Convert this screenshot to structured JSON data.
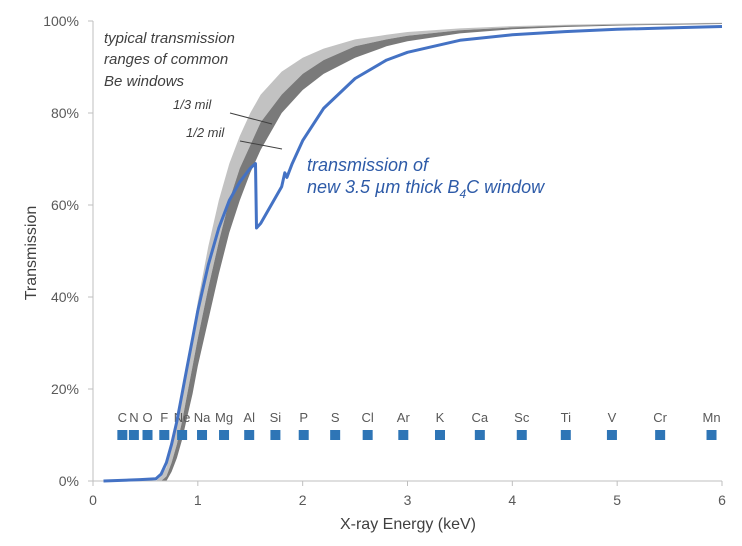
{
  "chart_data": {
    "type": "line",
    "xlabel": "X-ray Energy (keV)",
    "ylabel": "Transmission",
    "xlim": [
      0,
      6
    ],
    "ylim": [
      0,
      100
    ],
    "xticks": [
      "0",
      "1",
      "2",
      "3",
      "4",
      "5",
      "6"
    ],
    "yticks": [
      "0%",
      "20%",
      "40%",
      "60%",
      "80%",
      "100%"
    ],
    "colors": {
      "be_light": "#c2c2c2",
      "be_dark": "#7a7a7a",
      "b4c": "#4472c4",
      "marker": "#2e75b6",
      "axis": "#bfbfbf"
    },
    "annotations": {
      "be_title": [
        "typical transmission",
        "ranges of  common",
        "Be windows"
      ],
      "one_third_mil": "1/3 mil",
      "one_half_mil": "1/2 mil",
      "b4c_line1": "transmission of",
      "b4c_line2_pre": "new 3.5 µm thick B",
      "b4c_line2_sub": "4",
      "b4c_line2_post": "C window"
    },
    "series": [
      {
        "name": "Be 1/3 mil (upper bound)",
        "x": [
          0.6,
          0.65,
          0.7,
          0.75,
          0.8,
          0.85,
          0.9,
          0.95,
          1.0,
          1.1,
          1.2,
          1.3,
          1.4,
          1.5,
          1.6,
          1.8,
          2.0,
          2.2,
          2.5,
          2.8,
          3.0,
          3.5,
          4.0,
          4.5,
          5.0,
          5.5,
          6.0
        ],
        "values": [
          0,
          1,
          3,
          7,
          12,
          18,
          25,
          32,
          39,
          51,
          61,
          69,
          75,
          80,
          84,
          89,
          92,
          94,
          96,
          97,
          97.6,
          98.4,
          98.9,
          99.2,
          99.4,
          99.5,
          99.6
        ]
      },
      {
        "name": "Be 1/3 mil (lower bound) / 1/2 mil (upper bound)",
        "x": [
          0.65,
          0.7,
          0.75,
          0.8,
          0.85,
          0.9,
          0.95,
          1.0,
          1.1,
          1.2,
          1.3,
          1.4,
          1.5,
          1.6,
          1.8,
          2.0,
          2.2,
          2.5,
          2.8,
          3.0,
          3.5,
          4.0,
          4.5,
          5.0,
          5.5,
          6.0
        ],
        "values": [
          0,
          1,
          4,
          8,
          13,
          19,
          25,
          31,
          42,
          52,
          61,
          68,
          73,
          78,
          84,
          88.5,
          91.5,
          94.5,
          96,
          96.8,
          98,
          98.6,
          99,
          99.2,
          99.35,
          99.5
        ]
      },
      {
        "name": "Be 1/2 mil (lower bound)",
        "x": [
          0.7,
          0.75,
          0.8,
          0.85,
          0.9,
          0.95,
          1.0,
          1.1,
          1.2,
          1.3,
          1.4,
          1.5,
          1.6,
          1.8,
          2.0,
          2.2,
          2.5,
          2.8,
          3.0,
          3.5,
          4.0,
          4.5,
          5.0,
          5.5,
          6.0
        ],
        "values": [
          0,
          2,
          5,
          9,
          14,
          19,
          25,
          35,
          45,
          54,
          61,
          67,
          72,
          80,
          85,
          88.5,
          92,
          94.5,
          95.6,
          97.3,
          98.2,
          98.7,
          99,
          99.2,
          99.35
        ]
      },
      {
        "name": "3.5 µm B4C window",
        "x": [
          0.1,
          0.45,
          0.6,
          0.65,
          0.7,
          0.75,
          0.8,
          0.85,
          0.9,
          0.95,
          1.0,
          1.1,
          1.2,
          1.3,
          1.4,
          1.5,
          1.55,
          1.56,
          1.6,
          1.7,
          1.8,
          1.83,
          1.85,
          1.9,
          2.0,
          2.2,
          2.5,
          2.8,
          3.0,
          3.5,
          4.0,
          4.5,
          5.0,
          5.5,
          6.0
        ],
        "values": [
          0,
          0.3,
          0.5,
          1.5,
          4,
          8,
          13,
          19,
          25,
          31,
          37,
          47,
          55,
          61,
          65,
          68,
          69,
          55,
          56,
          60,
          64,
          67,
          66,
          69,
          74,
          81,
          87.5,
          91.5,
          93.2,
          95.8,
          97,
          97.7,
          98.2,
          98.5,
          98.8
        ]
      }
    ],
    "elements": [
      {
        "symbol": "C",
        "energy": 0.28,
        "value": 10
      },
      {
        "symbol": "N",
        "energy": 0.39,
        "value": 10
      },
      {
        "symbol": "O",
        "energy": 0.52,
        "value": 10
      },
      {
        "symbol": "F",
        "energy": 0.68,
        "value": 10
      },
      {
        "symbol": "Ne",
        "energy": 0.85,
        "value": 10
      },
      {
        "symbol": "Na",
        "energy": 1.04,
        "value": 10
      },
      {
        "symbol": "Mg",
        "energy": 1.25,
        "value": 10
      },
      {
        "symbol": "Al",
        "energy": 1.49,
        "value": 10
      },
      {
        "symbol": "Si",
        "energy": 1.74,
        "value": 10
      },
      {
        "symbol": "P",
        "energy": 2.01,
        "value": 10
      },
      {
        "symbol": "S",
        "energy": 2.31,
        "value": 10
      },
      {
        "symbol": "Cl",
        "energy": 2.62,
        "value": 10
      },
      {
        "symbol": "Ar",
        "energy": 2.96,
        "value": 10
      },
      {
        "symbol": "K",
        "energy": 3.31,
        "value": 10
      },
      {
        "symbol": "Ca",
        "energy": 3.69,
        "value": 10
      },
      {
        "symbol": "Sc",
        "energy": 4.09,
        "value": 10
      },
      {
        "symbol": "Ti",
        "energy": 4.51,
        "value": 10
      },
      {
        "symbol": "V",
        "energy": 4.95,
        "value": 10
      },
      {
        "symbol": "Cr",
        "energy": 5.41,
        "value": 10
      },
      {
        "symbol": "Mn",
        "energy": 5.9,
        "value": 10
      }
    ]
  }
}
